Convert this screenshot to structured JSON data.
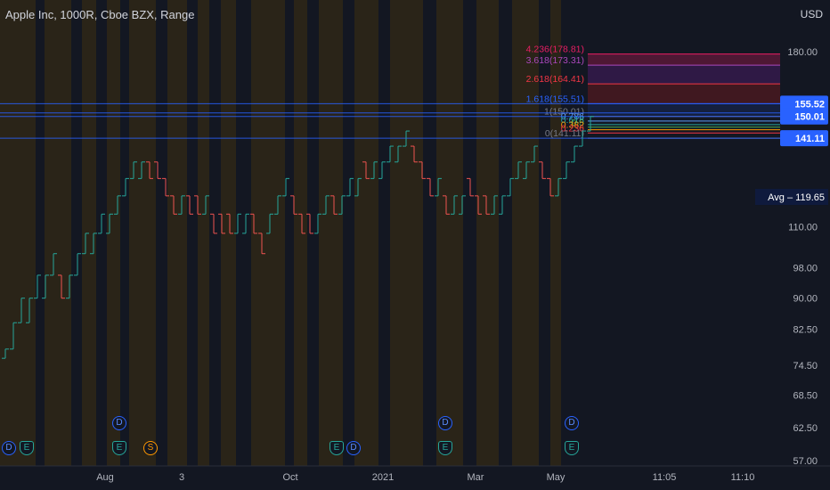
{
  "header": {
    "title": "Apple Inc, 1000R, Cboe BZX, Range",
    "currency": "USD"
  },
  "chart_data": {
    "type": "line",
    "title": "Apple Inc, 1000R, Cboe BZX, Range",
    "chart_style": "range bars",
    "y_scale": "log",
    "ylim": [
      57,
      190
    ],
    "y_ticks": [
      180.0,
      110.0,
      98.0,
      90.0,
      82.5,
      74.5,
      68.5,
      62.5,
      57.0
    ],
    "x_ticks": [
      "Aug",
      "3",
      "Oct",
      "2021",
      "Mar",
      "May",
      "11:05",
      "11:10"
    ],
    "bars": [
      [
        2,
        76,
        78,
        "up"
      ],
      [
        11,
        78,
        84,
        "up"
      ],
      [
        20,
        84,
        90,
        "up"
      ],
      [
        29,
        84,
        90,
        "up"
      ],
      [
        38,
        90,
        96,
        "up"
      ],
      [
        47,
        90,
        96,
        "up"
      ],
      [
        56,
        96,
        102,
        "up"
      ],
      [
        65,
        96,
        90,
        "down"
      ],
      [
        74,
        90,
        96,
        "up"
      ],
      [
        83,
        96,
        102,
        "up"
      ],
      [
        92,
        102,
        108,
        "up"
      ],
      [
        101,
        102,
        108,
        "up"
      ],
      [
        110,
        108,
        114,
        "up"
      ],
      [
        119,
        108,
        114,
        "up"
      ],
      [
        128,
        114,
        120,
        "up"
      ],
      [
        137,
        120,
        126,
        "up"
      ],
      [
        146,
        126,
        132,
        "up"
      ],
      [
        155,
        126,
        132,
        "up"
      ],
      [
        164,
        132,
        126,
        "down"
      ],
      [
        173,
        132,
        126,
        "down"
      ],
      [
        182,
        126,
        120,
        "down"
      ],
      [
        191,
        120,
        114,
        "down"
      ],
      [
        200,
        114,
        120,
        "up"
      ],
      [
        209,
        120,
        114,
        "down"
      ],
      [
        218,
        120,
        114,
        "down"
      ],
      [
        227,
        114,
        120,
        "up"
      ],
      [
        236,
        114,
        108,
        "down"
      ],
      [
        245,
        114,
        108,
        "down"
      ],
      [
        254,
        114,
        108,
        "down"
      ],
      [
        263,
        108,
        114,
        "up"
      ],
      [
        272,
        108,
        114,
        "up"
      ],
      [
        281,
        114,
        108,
        "down"
      ],
      [
        290,
        108,
        102,
        "down"
      ],
      [
        299,
        108,
        114,
        "up"
      ],
      [
        308,
        114,
        120,
        "up"
      ],
      [
        317,
        120,
        126,
        "up"
      ],
      [
        326,
        120,
        114,
        "down"
      ],
      [
        335,
        114,
        108,
        "down"
      ],
      [
        344,
        114,
        108,
        "down"
      ],
      [
        353,
        108,
        114,
        "up"
      ],
      [
        362,
        114,
        120,
        "up"
      ],
      [
        371,
        120,
        114,
        "down"
      ],
      [
        380,
        114,
        120,
        "up"
      ],
      [
        389,
        120,
        126,
        "up"
      ],
      [
        398,
        120,
        126,
        "up"
      ],
      [
        407,
        132,
        126,
        "down"
      ],
      [
        416,
        126,
        132,
        "up"
      ],
      [
        425,
        126,
        132,
        "up"
      ],
      [
        434,
        132,
        138,
        "up"
      ],
      [
        443,
        132,
        138,
        "up"
      ],
      [
        452,
        138,
        144,
        "up"
      ],
      [
        461,
        138,
        132,
        "down"
      ],
      [
        470,
        132,
        126,
        "down"
      ],
      [
        479,
        126,
        120,
        "down"
      ],
      [
        488,
        120,
        126,
        "up"
      ],
      [
        497,
        120,
        114,
        "down"
      ],
      [
        506,
        114,
        120,
        "up"
      ],
      [
        515,
        114,
        120,
        "up"
      ],
      [
        524,
        126,
        120,
        "down"
      ],
      [
        533,
        120,
        114,
        "down"
      ],
      [
        542,
        120,
        114,
        "down"
      ],
      [
        551,
        114,
        120,
        "up"
      ],
      [
        560,
        114,
        120,
        "up"
      ],
      [
        569,
        120,
        126,
        "up"
      ],
      [
        578,
        126,
        132,
        "up"
      ],
      [
        587,
        126,
        132,
        "up"
      ],
      [
        596,
        132,
        138,
        "up"
      ],
      [
        605,
        132,
        126,
        "down"
      ],
      [
        614,
        126,
        120,
        "down"
      ],
      [
        623,
        120,
        126,
        "up"
      ],
      [
        632,
        126,
        132,
        "up"
      ],
      [
        641,
        132,
        138,
        "up"
      ],
      [
        650,
        138,
        144,
        "up"
      ],
      [
        659,
        144,
        150,
        "up"
      ]
    ],
    "fib_levels": [
      {
        "ratio": "4.236",
        "value": 178.81,
        "label": "4.236(178.81)",
        "color": "#e91e63"
      },
      {
        "ratio": "3.618",
        "value": 173.31,
        "label": "3.618(173.31)",
        "color": "#ab47bc"
      },
      {
        "ratio": "2.618",
        "value": 164.41,
        "label": "2.618(164.41)",
        "color": "#f23645"
      },
      {
        "ratio": "1.618",
        "value": 155.51,
        "label": "1.618(155.51)",
        "color": "#2962ff"
      },
      {
        "ratio": "1",
        "value": 150.01,
        "label": "1(150.01)",
        "color": "#787b86"
      },
      {
        "ratio": "0.786",
        "value": 148.1,
        "label": "0.786",
        "color": "#5b9cf6"
      },
      {
        "ratio": "0.618",
        "value": 146.61,
        "label": "0.618",
        "color": "#26a69a"
      },
      {
        "ratio": "0.5",
        "value": 145.56,
        "label": "0.5",
        "color": "#4caf50"
      },
      {
        "ratio": "0.382",
        "value": 144.51,
        "label": "0.382",
        "color": "#ff9800"
      },
      {
        "ratio": "0.236",
        "value": 143.21,
        "label": "0.236",
        "color": "#f23645"
      },
      {
        "ratio": "0",
        "value": 141.11,
        "label": "0(141.11)",
        "color": "#787b86"
      }
    ],
    "fib_zones": [
      {
        "from": 173.31,
        "to": 178.81,
        "color": "#e91e63"
      },
      {
        "from": 164.41,
        "to": 173.31,
        "color": "#7b1fa2"
      },
      {
        "from": 155.51,
        "to": 164.41,
        "color": "#b71c1c"
      },
      {
        "from": 150.01,
        "to": 155.51,
        "color": "#1e3a8a"
      }
    ],
    "price_labels": [
      {
        "value": 155.52,
        "text": "155.52",
        "kind": "tag"
      },
      {
        "value": 150.01,
        "text": "150.01",
        "kind": "tag"
      },
      {
        "value": 141.11,
        "text": "141.11",
        "kind": "tag"
      },
      {
        "value": 119.65,
        "text": "Avg – 119.65",
        "kind": "avg"
      }
    ],
    "horizontal_lines": [
      155.52,
      151.5,
      150.01,
      141.11
    ],
    "session_bands": [
      [
        0,
        40,
        "o"
      ],
      [
        40,
        50,
        "d"
      ],
      [
        50,
        80,
        "o"
      ],
      [
        80,
        92,
        "d"
      ],
      [
        92,
        108,
        "o"
      ],
      [
        108,
        120,
        "d"
      ],
      [
        120,
        135,
        "o"
      ],
      [
        135,
        145,
        "d"
      ],
      [
        145,
        175,
        "o"
      ],
      [
        175,
        188,
        "d"
      ],
      [
        188,
        210,
        "o"
      ],
      [
        210,
        222,
        "d"
      ],
      [
        222,
        235,
        "o"
      ],
      [
        235,
        248,
        "d"
      ],
      [
        248,
        265,
        "o"
      ],
      [
        265,
        282,
        "d"
      ],
      [
        282,
        320,
        "o"
      ],
      [
        320,
        330,
        "d"
      ],
      [
        330,
        345,
        "o"
      ],
      [
        345,
        358,
        "d"
      ],
      [
        358,
        385,
        "o"
      ],
      [
        385,
        398,
        "d"
      ],
      [
        398,
        425,
        "o"
      ],
      [
        425,
        438,
        "d"
      ],
      [
        438,
        475,
        "o"
      ],
      [
        475,
        490,
        "d"
      ],
      [
        490,
        520,
        "o"
      ],
      [
        520,
        535,
        "d"
      ],
      [
        535,
        560,
        "o"
      ],
      [
        560,
        575,
        "d"
      ],
      [
        575,
        605,
        "o"
      ],
      [
        605,
        618,
        "d"
      ],
      [
        618,
        630,
        "o"
      ]
    ],
    "events": [
      {
        "letter": "D",
        "kind": "dividend",
        "x": 10,
        "row": 1
      },
      {
        "letter": "E",
        "kind": "earnings",
        "x": 30,
        "row": 1
      },
      {
        "letter": "D",
        "kind": "dividend",
        "x": 134,
        "row": 0
      },
      {
        "letter": "E",
        "kind": "earnings",
        "x": 134,
        "row": 1
      },
      {
        "letter": "S",
        "kind": "split",
        "x": 169,
        "row": 1
      },
      {
        "letter": "E",
        "kind": "earnings",
        "x": 378,
        "row": 1
      },
      {
        "letter": "D",
        "kind": "dividend",
        "x": 397,
        "row": 1
      },
      {
        "letter": "D",
        "kind": "dividend",
        "x": 500,
        "row": 0
      },
      {
        "letter": "E",
        "kind": "earnings",
        "x": 500,
        "row": 1
      },
      {
        "letter": "D",
        "kind": "dividend",
        "x": 642,
        "row": 0
      },
      {
        "letter": "E",
        "kind": "earnings",
        "x": 642,
        "row": 1
      }
    ],
    "colors": {
      "up": "#26a69a",
      "down": "#ef5350",
      "background": "#131722",
      "session_orange": "#2a2418",
      "session_dark": "#131722"
    }
  }
}
